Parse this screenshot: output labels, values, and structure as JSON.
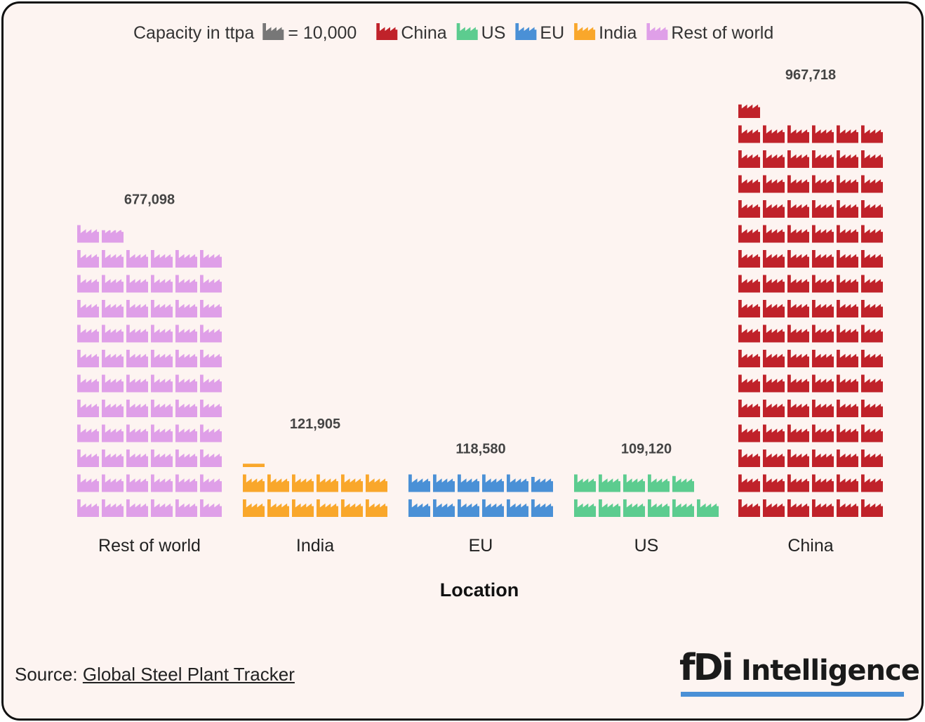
{
  "legend": {
    "prefix": "Capacity in ttpa",
    "unit_label": "= 10,000",
    "unit_icon": "factory-icon",
    "unit_color": "#777777",
    "entries": [
      {
        "label": "China",
        "color": "#c0222a"
      },
      {
        "label": "US",
        "color": "#5ccc8f"
      },
      {
        "label": "EU",
        "color": "#4a90d6"
      },
      {
        "label": "India",
        "color": "#f9a72b"
      },
      {
        "label": "Rest of world",
        "color": "#df9fe8"
      }
    ]
  },
  "chart_data": {
    "type": "pictogram",
    "icon": "factory-icon",
    "icon_unit": 10000,
    "xlabel": "Location",
    "categories": [
      "Rest of world",
      "India",
      "EU",
      "US",
      "China"
    ],
    "values": [
      677098,
      121905,
      118580,
      109120,
      967718
    ],
    "value_labels": [
      "677,098",
      "121,905",
      "118,580",
      "109,120",
      "967,718"
    ],
    "colors": [
      "#df9fe8",
      "#f9a72b",
      "#4a90d6",
      "#5ccc8f",
      "#c0222a"
    ]
  },
  "source": {
    "prefix": "Source:",
    "link_text": "Global Steel Plant Tracker"
  },
  "logo": {
    "mark": "fDi",
    "word": "Intelligence"
  }
}
